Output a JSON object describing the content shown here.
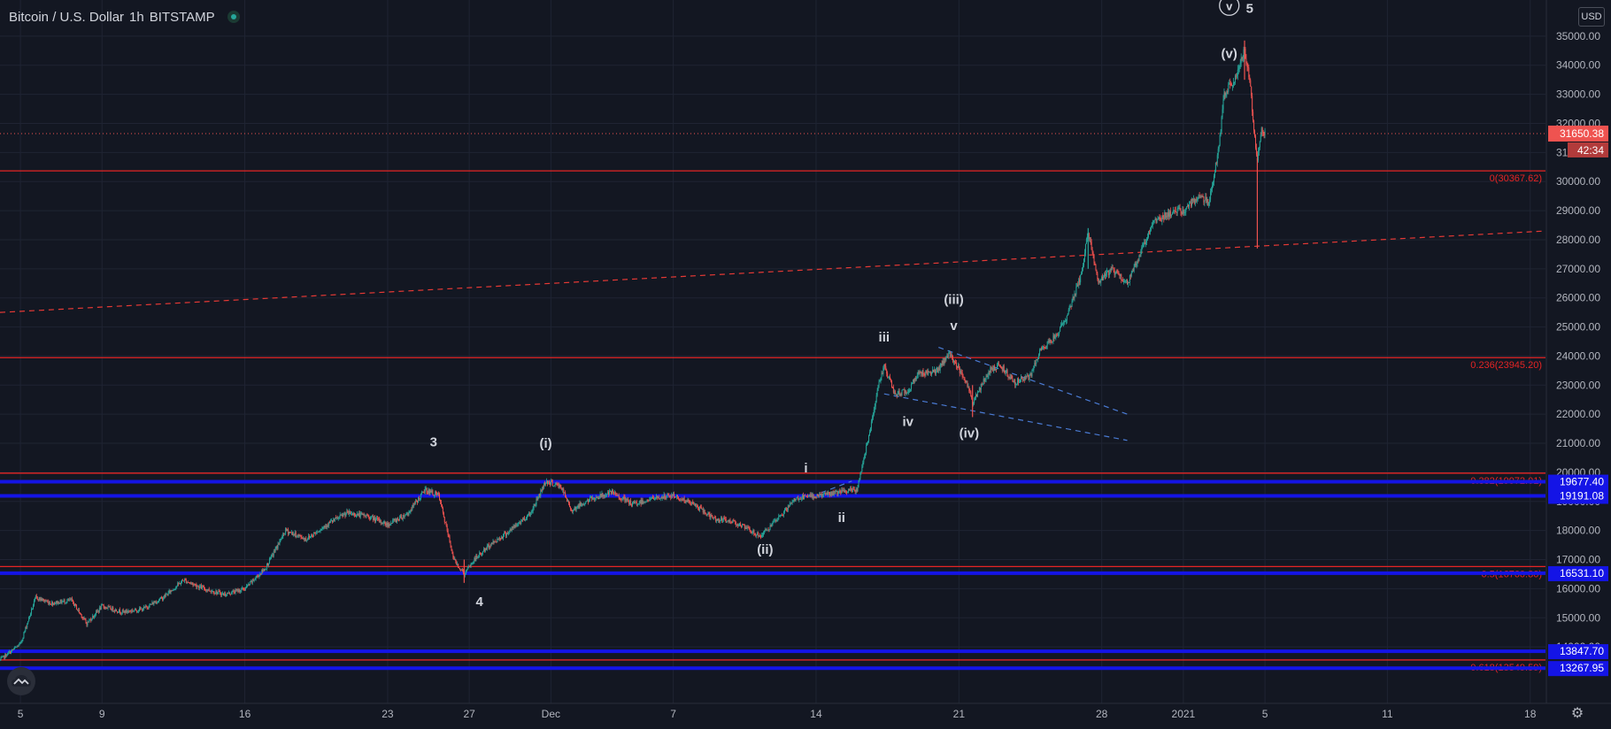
{
  "header": {
    "symbol": "Bitcoin / U.S. Dollar",
    "interval": "1h",
    "exchange": "BITSTAMP",
    "status_icon": "market-open-dot-icon"
  },
  "toolbar": {
    "currency_label": "USD",
    "settings_icon": "gear-icon",
    "logo_icon": "tradingview-cloud-icon"
  },
  "colors": {
    "background": "#131722",
    "axis_text": "#b2b5be",
    "up_candle": "#26a69a",
    "down_candle": "#ef5350",
    "fib_line": "#e52424",
    "support_band": "#1414e6",
    "price_tag": "#ef5350",
    "label_tag": "#2962ff"
  },
  "chart_data": {
    "type": "candlestick",
    "symbol": "BTCUSD",
    "timeframe": "1h",
    "y_range": [
      13000,
      36000
    ],
    "y_ticks": [
      14000,
      15000,
      16000,
      17000,
      18000,
      19000,
      20000,
      21000,
      22000,
      23000,
      24000,
      25000,
      26000,
      27000,
      28000,
      29000,
      30000,
      31000,
      32000,
      33000,
      34000,
      35000
    ],
    "y_tick_labels": [
      "14000.00",
      "15000.00",
      "16000.00",
      "17000.00",
      "18000.00",
      "19000.00",
      "20000.00",
      "21000.00",
      "22000.00",
      "23000.00",
      "24000.00",
      "25000.00",
      "26000.00",
      "27000.00",
      "28000.00",
      "29000.00",
      "30000.00",
      "31000.00",
      "32000.00",
      "33000.00",
      "34000.00",
      "35000.00"
    ],
    "x_range": [
      "2020-11-04T00:00",
      "2021-01-18T18:00"
    ],
    "x_ticks": [
      {
        "label": "5",
        "t": "2020-11-05"
      },
      {
        "label": "9",
        "t": "2020-11-09"
      },
      {
        "label": "16",
        "t": "2020-11-16"
      },
      {
        "label": "23",
        "t": "2020-11-23"
      },
      {
        "label": "27",
        "t": "2020-11-27"
      },
      {
        "label": "Dec",
        "t": "2020-12-01"
      },
      {
        "label": "7",
        "t": "2020-12-07"
      },
      {
        "label": "14",
        "t": "2020-12-14"
      },
      {
        "label": "21",
        "t": "2020-12-21"
      },
      {
        "label": "28",
        "t": "2020-12-28"
      },
      {
        "label": "2021",
        "t": "2021-01-01"
      },
      {
        "label": "5",
        "t": "2021-01-05"
      },
      {
        "label": "11",
        "t": "2021-01-11"
      },
      {
        "label": "18",
        "t": "2021-01-18"
      }
    ],
    "price_path": [
      [
        "2020-11-04T00:00",
        13550
      ],
      [
        "2020-11-05T00:00",
        14100
      ],
      [
        "2020-11-05T18:00",
        15700
      ],
      [
        "2020-11-06T12:00",
        15500
      ],
      [
        "2020-11-07T12:00",
        15600
      ],
      [
        "2020-11-08T06:00",
        14800
      ],
      [
        "2020-11-09T00:00",
        15400
      ],
      [
        "2020-11-10T00:00",
        15200
      ],
      [
        "2020-11-11T00:00",
        15300
      ],
      [
        "2020-11-12T00:00",
        15700
      ],
      [
        "2020-11-13T00:00",
        16300
      ],
      [
        "2020-11-14T00:00",
        16000
      ],
      [
        "2020-11-15T00:00",
        15800
      ],
      [
        "2020-11-16T00:00",
        16000
      ],
      [
        "2020-11-17T00:00",
        16700
      ],
      [
        "2020-11-18T00:00",
        18000
      ],
      [
        "2020-11-19T00:00",
        17700
      ],
      [
        "2020-11-20T00:00",
        18200
      ],
      [
        "2020-11-21T00:00",
        18600
      ],
      [
        "2020-11-22T00:00",
        18500
      ],
      [
        "2020-11-23T00:00",
        18200
      ],
      [
        "2020-11-24T00:00",
        18600
      ],
      [
        "2020-11-24T20:00",
        19400
      ],
      [
        "2020-11-25T12:00",
        19200
      ],
      [
        "2020-11-26T06:00",
        17000
      ],
      [
        "2020-11-26T18:00",
        16500
      ],
      [
        "2020-11-27T06:00",
        17000
      ],
      [
        "2020-11-28T00:00",
        17500
      ],
      [
        "2020-11-29T00:00",
        18000
      ],
      [
        "2020-11-30T00:00",
        18600
      ],
      [
        "2020-11-30T18:00",
        19700
      ],
      [
        "2020-12-01T12:00",
        19500
      ],
      [
        "2020-12-02T00:00",
        18700
      ],
      [
        "2020-12-03T00:00",
        19100
      ],
      [
        "2020-12-04T00:00",
        19300
      ],
      [
        "2020-12-05T00:00",
        18900
      ],
      [
        "2020-12-06T00:00",
        19100
      ],
      [
        "2020-12-07T00:00",
        19200
      ],
      [
        "2020-12-08T00:00",
        18900
      ],
      [
        "2020-12-09T00:00",
        18400
      ],
      [
        "2020-12-10T00:00",
        18300
      ],
      [
        "2020-12-11T06:00",
        17800
      ],
      [
        "2020-12-12T00:00",
        18300
      ],
      [
        "2020-12-13T00:00",
        19100
      ],
      [
        "2020-12-14T00:00",
        19200
      ],
      [
        "2020-12-15T00:00",
        19300
      ],
      [
        "2020-12-16T00:00",
        19400
      ],
      [
        "2020-12-16T12:00",
        21000
      ],
      [
        "2020-12-17T00:00",
        22800
      ],
      [
        "2020-12-17T08:00",
        23700
      ],
      [
        "2020-12-17T20:00",
        22700
      ],
      [
        "2020-12-18T12:00",
        22800
      ],
      [
        "2020-12-19T00:00",
        23400
      ],
      [
        "2020-12-20T00:00",
        23500
      ],
      [
        "2020-12-20T12:00",
        24100
      ],
      [
        "2020-12-21T08:00",
        23200
      ],
      [
        "2020-12-21T16:00",
        22400
      ],
      [
        "2020-12-22T12:00",
        23500
      ],
      [
        "2020-12-23T00:00",
        23700
      ],
      [
        "2020-12-23T18:00",
        23100
      ],
      [
        "2020-12-24T12:00",
        23300
      ],
      [
        "2020-12-25T00:00",
        24200
      ],
      [
        "2020-12-25T18:00",
        24700
      ],
      [
        "2020-12-26T06:00",
        25300
      ],
      [
        "2020-12-27T00:00",
        26800
      ],
      [
        "2020-12-27T08:00",
        28300
      ],
      [
        "2020-12-27T20:00",
        26500
      ],
      [
        "2020-12-28T12:00",
        27000
      ],
      [
        "2020-12-29T06:00",
        26500
      ],
      [
        "2020-12-29T18:00",
        27300
      ],
      [
        "2020-12-30T12:00",
        28600
      ],
      [
        "2020-12-31T06:00",
        28900
      ],
      [
        "2021-01-01T00:00",
        29000
      ],
      [
        "2021-01-01T18:00",
        29500
      ],
      [
        "2021-01-02T06:00",
        29300
      ],
      [
        "2021-01-02T18:00",
        31200
      ],
      [
        "2021-01-03T00:00",
        33000
      ],
      [
        "2021-01-03T12:00",
        33500
      ],
      [
        "2021-01-04T00:00",
        34500
      ],
      [
        "2021-01-04T06:00",
        33500
      ],
      [
        "2021-01-04T12:00",
        31500
      ],
      [
        "2021-01-04T15:00",
        30800
      ],
      [
        "2021-01-04T20:00",
        31900
      ],
      [
        "2021-01-05T00:00",
        31650
      ]
    ],
    "horizontal_levels": [
      {
        "label": "0(30367.62)",
        "value": 30367.62
      },
      {
        "label": "0.236(23945.20)",
        "value": 23945.2
      },
      {
        "label": "0.382(19972.01)",
        "value": 19972.01
      },
      {
        "label": "0.5(16760.80)",
        "value": 16760.8
      },
      {
        "label": "0.618(13549.59)",
        "value": 13549.59
      }
    ],
    "support_bands": [
      {
        "value": 19677.4,
        "label": "19677.40"
      },
      {
        "value": 19191.08,
        "label": "19191.08"
      },
      {
        "value": 16531.1,
        "label": "16531.10"
      },
      {
        "value": 13847.7,
        "label": "13847.70"
      },
      {
        "value": 13267.95,
        "label": "13267.95"
      }
    ],
    "current_price": {
      "value": 31650.38,
      "label": "31650.38",
      "countdown": "42:34"
    },
    "trendlines": [
      {
        "style": "dashed-red",
        "from": [
          "2020-11-04T00:00",
          25500
        ],
        "to": [
          "2021-01-18T18:00",
          28300
        ]
      },
      {
        "style": "dashed-blue",
        "from": [
          "2020-12-17T08:00",
          22700
        ],
        "to": [
          "2020-12-29T06:00",
          21100
        ]
      },
      {
        "style": "dashed-blue",
        "from": [
          "2020-12-20T00:00",
          24300
        ],
        "to": [
          "2020-12-29T06:00",
          22000
        ]
      },
      {
        "style": "dashed-blue",
        "from": [
          "2020-12-14T06:00",
          19300
        ],
        "to": [
          "2020-12-15T18:00",
          19700
        ]
      }
    ],
    "wave_labels": [
      {
        "text": "3",
        "t": "2020-11-25T06:00",
        "y": 20900
      },
      {
        "text": "4",
        "t": "2020-11-27T12:00",
        "y": 15400
      },
      {
        "text": "(i)",
        "t": "2020-11-30T18:00",
        "y": 20850
      },
      {
        "text": "(ii)",
        "t": "2020-12-11T12:00",
        "y": 17200
      },
      {
        "text": "i",
        "t": "2020-12-13T12:00",
        "y": 20000
      },
      {
        "text": "ii",
        "t": "2020-12-15T06:00",
        "y": 18300
      },
      {
        "text": "iii",
        "t": "2020-12-17T08:00",
        "y": 24500
      },
      {
        "text": "iv",
        "t": "2020-12-18T12:00",
        "y": 21600
      },
      {
        "text": "(iii)",
        "t": "2020-12-20T18:00",
        "y": 25800
      },
      {
        "text": "v",
        "t": "2020-12-20T18:00",
        "y": 24900
      },
      {
        "text": "(iv)",
        "t": "2020-12-21T12:00",
        "y": 21200
      },
      {
        "text": "(v)",
        "t": "2021-01-03T06:00",
        "y": 34250
      },
      {
        "text": "v",
        "t": "2021-01-03T06:00",
        "y": 35900,
        "circled": true
      },
      {
        "text": "5",
        "t": "2021-01-04T06:00",
        "y": 35800
      }
    ]
  }
}
